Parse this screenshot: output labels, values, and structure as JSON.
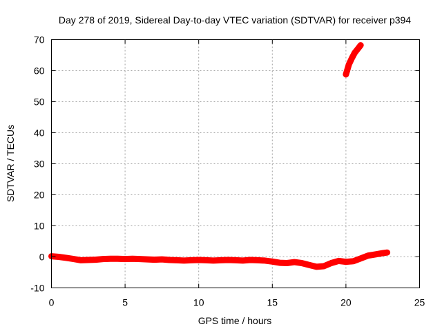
{
  "chart_data": {
    "type": "line",
    "title": "Day 278 of 2019, Sidereal Day-to-day VTEC variation (SDTVAR) for receiver p394",
    "xlabel": "GPS time / hours",
    "ylabel": "SDTVAR / TECUs",
    "xlim": [
      0,
      25
    ],
    "ylim": [
      -10,
      70
    ],
    "xticks": [
      0,
      5,
      10,
      15,
      20,
      25
    ],
    "yticks": [
      -10,
      0,
      10,
      20,
      30,
      40,
      50,
      60,
      70
    ],
    "grid": true,
    "series": [
      {
        "name": "main",
        "color": "#ff0000",
        "x": [
          0,
          0.5,
          1,
          1.5,
          2,
          2.5,
          3,
          3.5,
          4,
          4.5,
          5,
          5.5,
          6,
          6.5,
          7,
          7.5,
          8,
          8.5,
          9,
          9.5,
          10,
          10.5,
          11,
          11.5,
          12,
          12.5,
          13,
          13.5,
          14,
          14.5,
          15,
          15.5,
          16,
          16.5,
          17,
          17.5,
          18,
          18.5,
          19,
          19.5,
          20,
          20.5,
          21,
          21.5,
          22,
          22.5,
          22.8
        ],
        "y": [
          0.2,
          0.0,
          -0.3,
          -0.7,
          -1.1,
          -1.0,
          -0.9,
          -0.7,
          -0.6,
          -0.6,
          -0.7,
          -0.6,
          -0.7,
          -0.8,
          -0.9,
          -0.8,
          -1.0,
          -1.1,
          -1.2,
          -1.1,
          -1.0,
          -1.1,
          -1.2,
          -1.1,
          -1.0,
          -1.1,
          -1.2,
          -1.0,
          -1.1,
          -1.2,
          -1.5,
          -1.9,
          -2.0,
          -1.7,
          -2.0,
          -2.6,
          -3.2,
          -3.0,
          -2.0,
          -1.3,
          -1.6,
          -1.4,
          -0.5,
          0.4,
          0.8,
          1.2,
          1.4
        ]
      },
      {
        "name": "jump",
        "color": "#ff0000",
        "x": [
          20.0,
          20.2,
          20.4,
          20.6,
          20.8,
          21.0
        ],
        "y": [
          58.8,
          62.0,
          64.0,
          65.8,
          67.0,
          68.2
        ]
      }
    ]
  }
}
